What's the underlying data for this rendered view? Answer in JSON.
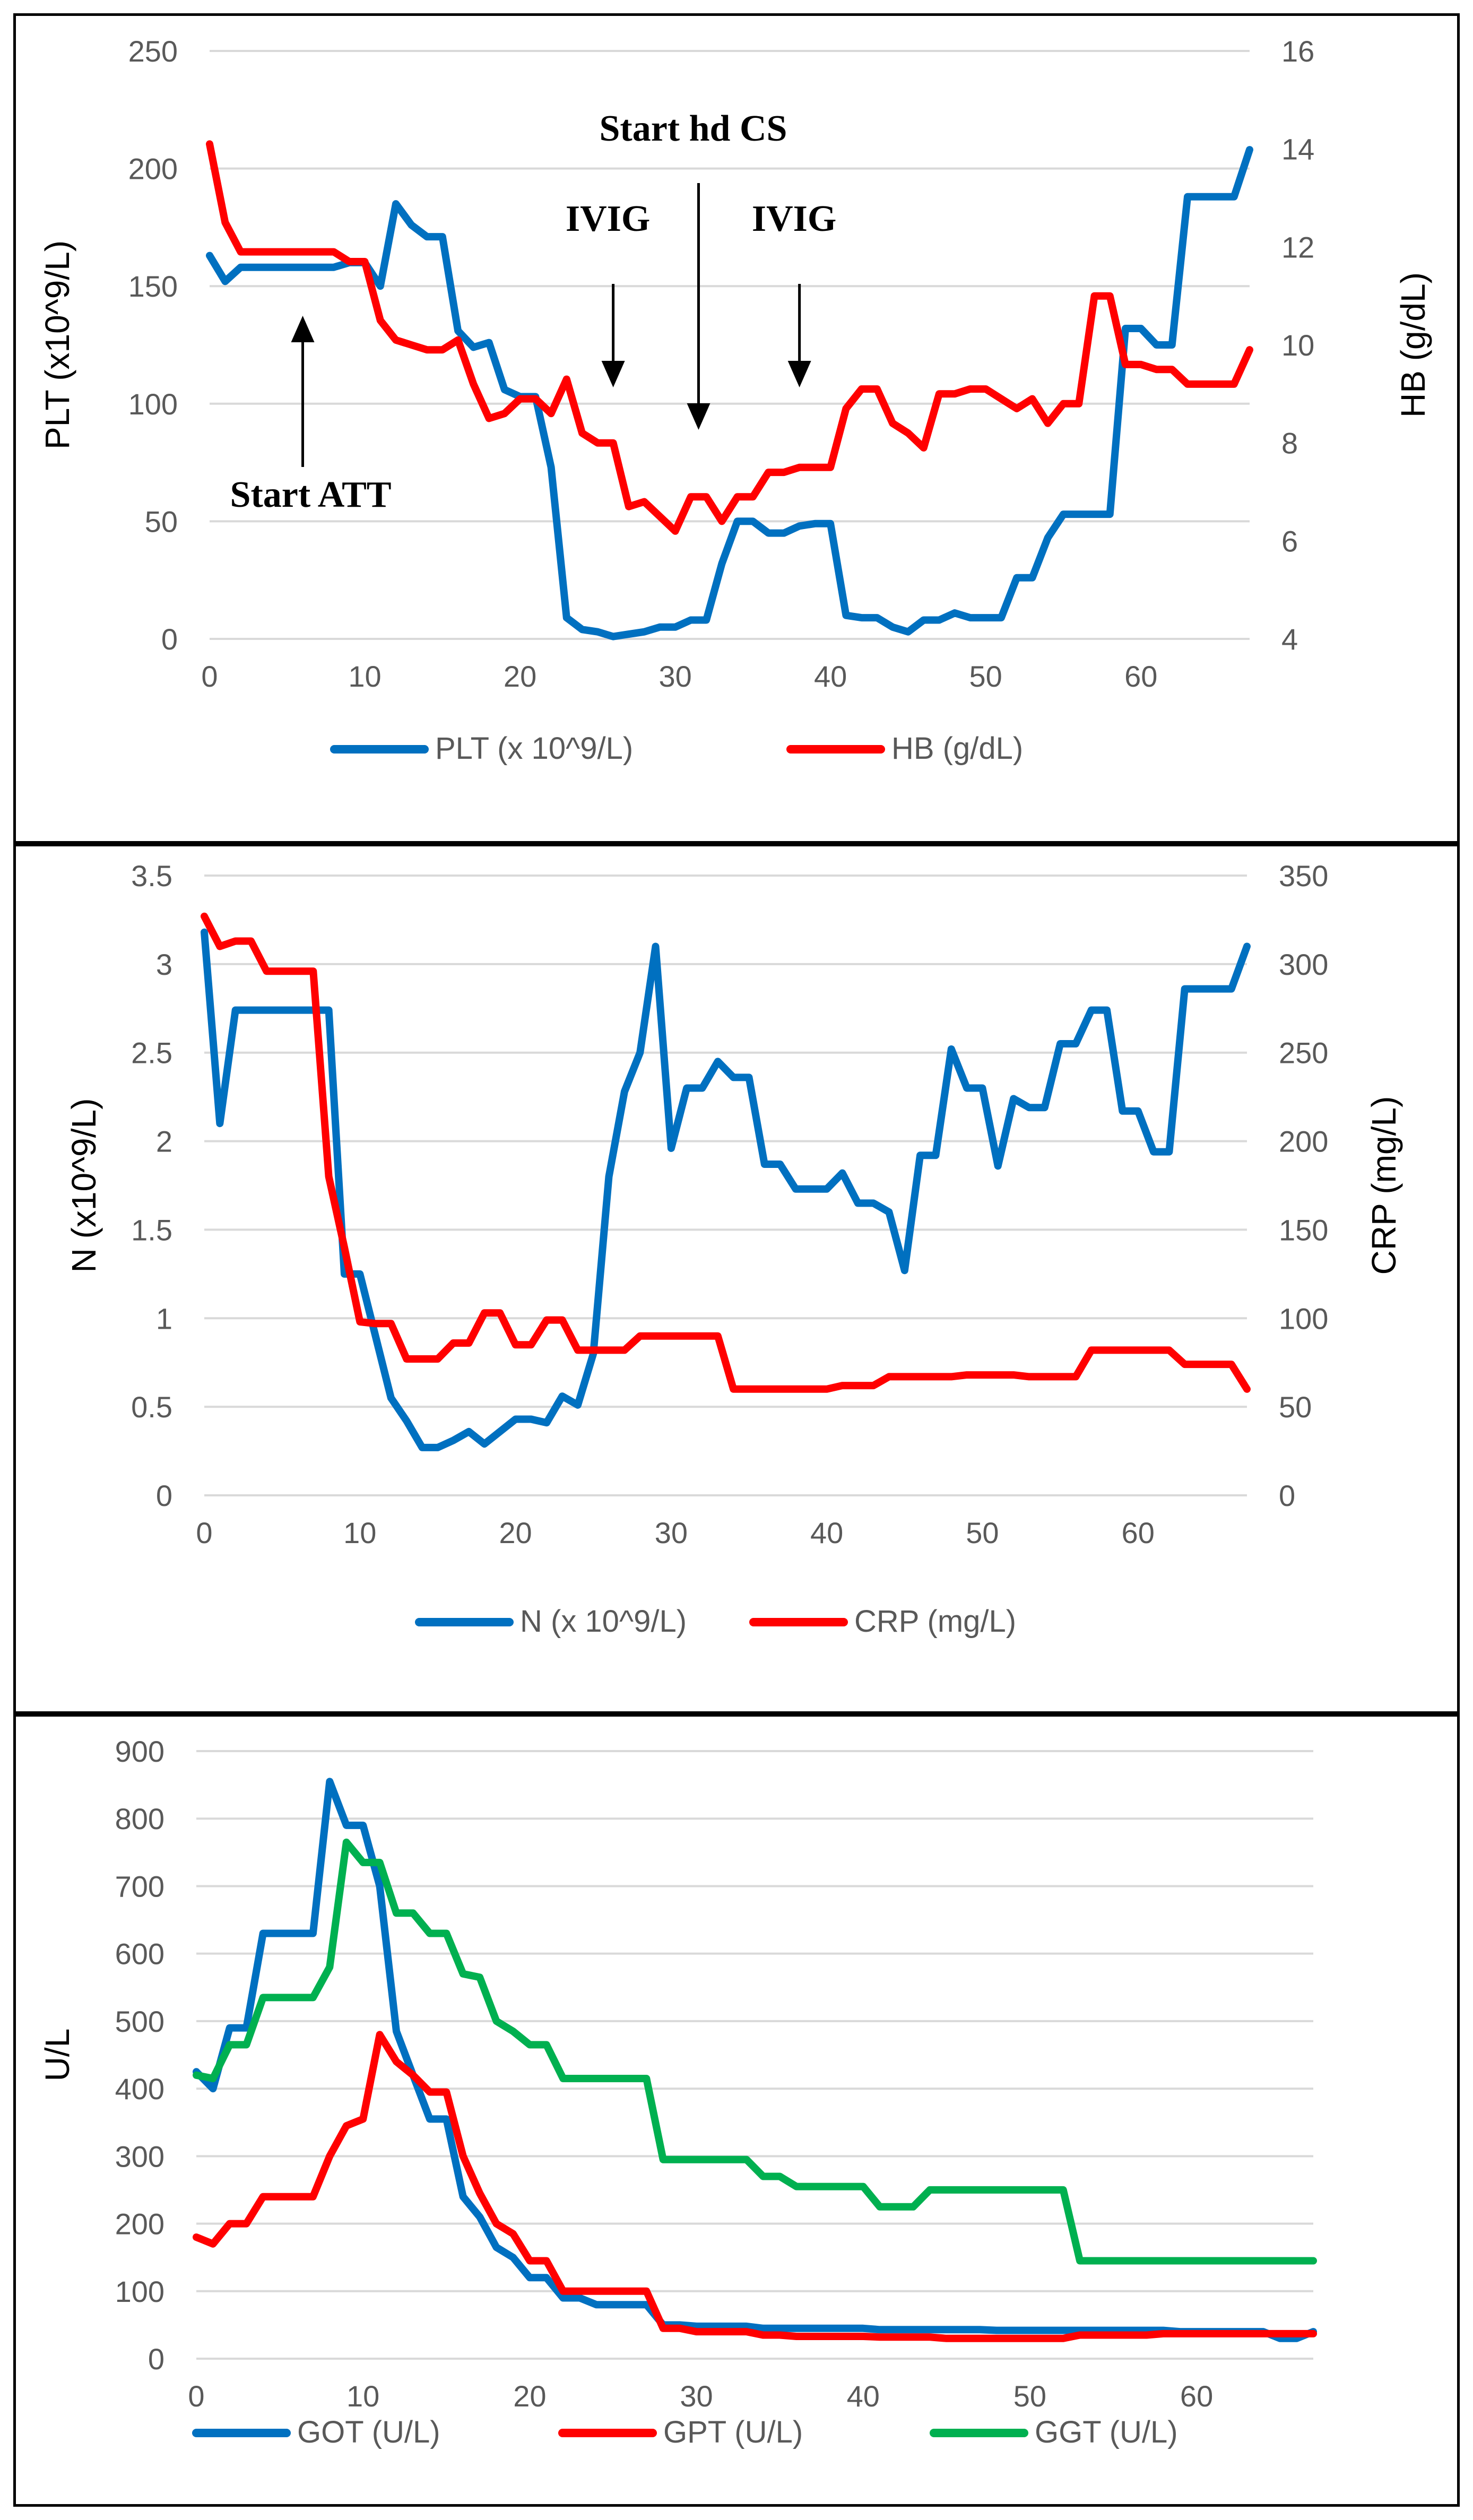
{
  "colors": {
    "blue": "#0070C0",
    "red": "#FF0000",
    "green": "#00B050"
  },
  "chart_data": [
    {
      "type": "line",
      "x": [
        0,
        1,
        2,
        3,
        4,
        5,
        6,
        7,
        8,
        9,
        10,
        11,
        12,
        13,
        14,
        15,
        16,
        17,
        18,
        19,
        20,
        21,
        22,
        23,
        24,
        25,
        26,
        27,
        28,
        29,
        30,
        31,
        32,
        33,
        34,
        35,
        36,
        37,
        38,
        39,
        40,
        41,
        42,
        43,
        44,
        45,
        46,
        47,
        48,
        49,
        50,
        51,
        52,
        53,
        54,
        55,
        56,
        57,
        58,
        59,
        60,
        61,
        62,
        63,
        64,
        65,
        66,
        67
      ],
      "xticks": [
        "0",
        "10",
        "20",
        "30",
        "40",
        "50",
        "60"
      ],
      "xlim": [
        0,
        67
      ],
      "ylabel": "PLT  (x10^9/L)",
      "ylim": [
        0,
        250
      ],
      "yticks": [
        "0",
        "50",
        "100",
        "150",
        "200",
        "250"
      ],
      "y2label": "HB (g/dL)",
      "y2lim": [
        4,
        16
      ],
      "y2ticks": [
        "4",
        "6",
        "8",
        "10",
        "12",
        "14",
        "16"
      ],
      "series": [
        {
          "name": "PLT (x 10^9/L)",
          "axis": "left",
          "color": "#0070C0",
          "values": [
            163,
            152,
            158,
            158,
            158,
            158,
            158,
            158,
            158,
            160,
            160,
            150,
            185,
            176,
            171,
            171,
            131,
            124,
            126,
            106,
            103,
            103,
            73,
            9,
            4,
            3,
            1,
            2,
            3,
            5,
            5,
            8,
            8,
            32,
            50,
            50,
            45,
            45,
            48,
            49,
            49,
            10,
            9,
            9,
            5,
            3,
            8,
            8,
            11,
            9,
            9,
            9,
            26,
            26,
            43,
            53,
            53,
            53,
            53,
            132,
            132,
            125,
            125,
            188,
            188,
            188,
            188,
            208
          ]
        },
        {
          "name": "HB (g/dL)",
          "axis": "right",
          "color": "#FF0000",
          "values": [
            14.1,
            12.5,
            11.9,
            11.9,
            11.9,
            11.9,
            11.9,
            11.9,
            11.9,
            11.7,
            11.7,
            10.5,
            10.1,
            10,
            9.9,
            9.9,
            10.1,
            9.2,
            8.5,
            8.6,
            8.9,
            8.9,
            8.6,
            9.3,
            8.2,
            8,
            8,
            6.7,
            6.8,
            6.5,
            6.2,
            6.9,
            6.9,
            6.4,
            6.9,
            6.9,
            7.4,
            7.4,
            7.5,
            7.5,
            7.5,
            8.7,
            9.1,
            9.1,
            8.4,
            8.2,
            7.9,
            9,
            9,
            9.1,
            9.1,
            8.9,
            8.7,
            8.9,
            8.4,
            8.8,
            8.8,
            11,
            11,
            9.6,
            9.6,
            9.5,
            9.5,
            9.2,
            9.2,
            9.2,
            9.2,
            9.9
          ]
        }
      ],
      "annotations": [
        {
          "text": "Start ATT",
          "x": 6,
          "direction": "up"
        },
        {
          "text": "IVIG",
          "x": 26,
          "direction": "down"
        },
        {
          "text": "Start hd CS",
          "x": 31.5,
          "direction": "down"
        },
        {
          "text": "IVIG",
          "x": 38,
          "direction": "down"
        }
      ]
    },
    {
      "type": "line",
      "x": [
        0,
        1,
        2,
        3,
        4,
        5,
        6,
        7,
        8,
        9,
        10,
        11,
        12,
        13,
        14,
        15,
        16,
        17,
        18,
        19,
        20,
        21,
        22,
        23,
        24,
        25,
        26,
        27,
        28,
        29,
        30,
        31,
        32,
        33,
        34,
        35,
        36,
        37,
        38,
        39,
        40,
        41,
        42,
        43,
        44,
        45,
        46,
        47,
        48,
        49,
        50,
        51,
        52,
        53,
        54,
        55,
        56,
        57,
        58,
        59,
        60,
        61,
        62,
        63,
        64,
        65,
        66,
        67
      ],
      "xticks": [
        "0",
        "10",
        "20",
        "30",
        "40",
        "50",
        "60"
      ],
      "xlim": [
        0,
        67
      ],
      "ylabel": "N (x10^9/L)",
      "ylim": [
        0,
        3.5
      ],
      "yticks": [
        "0",
        "0.5",
        "1",
        "1.5",
        "2",
        "2.5",
        "3",
        "3.5"
      ],
      "y2label": "CRP (mg/L)",
      "y2lim": [
        0,
        350
      ],
      "y2ticks": [
        "0",
        "50",
        "100",
        "150",
        "200",
        "250",
        "300",
        "350"
      ],
      "series": [
        {
          "name": "N (x 10^9/L)",
          "axis": "left",
          "color": "#0070C0",
          "values": [
            3.18,
            2.1,
            2.74,
            2.74,
            2.74,
            2.74,
            2.74,
            2.74,
            2.74,
            1.25,
            1.25,
            0.9,
            0.55,
            0.42,
            0.27,
            0.27,
            0.31,
            0.36,
            0.29,
            0.36,
            0.43,
            0.43,
            0.41,
            0.56,
            0.51,
            0.8,
            1.8,
            2.28,
            2.5,
            3.1,
            1.96,
            2.3,
            2.3,
            2.45,
            2.36,
            2.36,
            1.87,
            1.87,
            1.73,
            1.73,
            1.73,
            1.82,
            1.65,
            1.65,
            1.6,
            1.27,
            1.92,
            1.92,
            2.52,
            2.3,
            2.3,
            1.86,
            2.24,
            2.19,
            2.19,
            2.55,
            2.55,
            2.74,
            2.74,
            2.17,
            2.17,
            1.94,
            1.94,
            2.86,
            2.86,
            2.86,
            2.86,
            3.1
          ]
        },
        {
          "name": "CRP (mg/L)",
          "axis": "right",
          "color": "#FF0000",
          "values": [
            327,
            310,
            313,
            313,
            296,
            296,
            296,
            296,
            180,
            140,
            98,
            97,
            97,
            77,
            77,
            77,
            86,
            86,
            103,
            103,
            85,
            85,
            99,
            99,
            82,
            82,
            82,
            82,
            90,
            90,
            90,
            90,
            90,
            90,
            60,
            60,
            60,
            60,
            60,
            60,
            60,
            62,
            62,
            62,
            67,
            67,
            67,
            67,
            67,
            68,
            68,
            68,
            68,
            67,
            67,
            67,
            67,
            82,
            82,
            82,
            82,
            82,
            82,
            74,
            74,
            74,
            74,
            60
          ]
        }
      ]
    },
    {
      "type": "line",
      "x": [
        0,
        1,
        2,
        3,
        4,
        5,
        6,
        7,
        8,
        9,
        10,
        11,
        12,
        13,
        14,
        15,
        16,
        17,
        18,
        19,
        20,
        21,
        22,
        23,
        24,
        25,
        26,
        27,
        28,
        29,
        30,
        31,
        32,
        33,
        34,
        35,
        36,
        37,
        38,
        39,
        40,
        41,
        42,
        43,
        44,
        45,
        46,
        47,
        48,
        49,
        50,
        51,
        52,
        53,
        54,
        55,
        56,
        57,
        58,
        59,
        60,
        61,
        62,
        63,
        64,
        65,
        66,
        67
      ],
      "xticks": [
        "0",
        "10",
        "20",
        "30",
        "40",
        "50",
        "60"
      ],
      "xlim": [
        0,
        67
      ],
      "ylabel": "U/L",
      "ylim": [
        0,
        900
      ],
      "yticks": [
        "0",
        "100",
        "200",
        "300",
        "400",
        "500",
        "600",
        "700",
        "800",
        "900"
      ],
      "series": [
        {
          "name": "GOT (U/L)",
          "color": "#0070C0",
          "values": [
            425,
            400,
            490,
            490,
            630,
            630,
            630,
            630,
            855,
            790,
            790,
            700,
            485,
            420,
            355,
            355,
            240,
            210,
            165,
            150,
            120,
            120,
            90,
            90,
            80,
            80,
            80,
            80,
            50,
            50,
            48,
            48,
            48,
            48,
            45,
            45,
            45,
            45,
            45,
            45,
            45,
            43,
            43,
            43,
            43,
            43,
            43,
            43,
            42,
            42,
            42,
            42,
            42,
            42,
            42,
            42,
            42,
            42,
            42,
            40,
            40,
            40,
            40,
            40,
            40,
            30,
            30,
            40
          ]
        },
        {
          "name": "GPT (U/L)",
          "color": "#FF0000",
          "values": [
            180,
            170,
            200,
            200,
            240,
            240,
            240,
            240,
            300,
            345,
            355,
            480,
            440,
            420,
            395,
            395,
            300,
            245,
            200,
            185,
            145,
            145,
            100,
            100,
            100,
            100,
            100,
            100,
            45,
            45,
            40,
            40,
            40,
            40,
            35,
            35,
            33,
            33,
            33,
            33,
            33,
            32,
            32,
            32,
            32,
            30,
            30,
            30,
            30,
            30,
            30,
            30,
            30,
            35,
            35,
            35,
            35,
            35,
            37,
            37,
            37,
            37,
            37,
            37,
            37,
            37,
            37,
            37
          ]
        },
        {
          "name": "GGT (U/L)",
          "color": "#00B050",
          "values": [
            420,
            415,
            465,
            465,
            535,
            535,
            535,
            535,
            580,
            765,
            735,
            735,
            660,
            660,
            630,
            630,
            570,
            565,
            500,
            485,
            465,
            465,
            415,
            415,
            415,
            415,
            415,
            415,
            295,
            295,
            295,
            295,
            295,
            295,
            270,
            270,
            255,
            255,
            255,
            255,
            255,
            225,
            225,
            225,
            250,
            250,
            250,
            250,
            250,
            250,
            250,
            250,
            250,
            145,
            145,
            145,
            145,
            145,
            145,
            145,
            145,
            145,
            145,
            145,
            145,
            145,
            145,
            145
          ]
        }
      ]
    }
  ]
}
